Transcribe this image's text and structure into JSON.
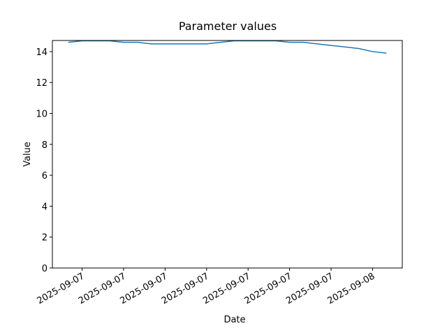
{
  "chart_data": {
    "type": "line",
    "title": "Parameter values",
    "xlabel": "Date",
    "ylabel": "Value",
    "x": [
      "2025-09-07T02:00",
      "2025-09-07T03:00",
      "2025-09-07T04:00",
      "2025-09-07T05:00",
      "2025-09-07T06:00",
      "2025-09-07T07:00",
      "2025-09-07T08:00",
      "2025-09-07T09:00",
      "2025-09-07T10:00",
      "2025-09-07T11:00",
      "2025-09-07T12:00",
      "2025-09-07T13:00",
      "2025-09-07T14:00",
      "2025-09-07T15:00",
      "2025-09-07T16:00",
      "2025-09-07T17:00",
      "2025-09-07T18:00",
      "2025-09-07T19:00",
      "2025-09-07T20:00",
      "2025-09-07T21:00",
      "2025-09-07T22:00",
      "2025-09-07T23:00",
      "2025-09-08T00:00",
      "2025-09-08T01:00"
    ],
    "series": [
      {
        "color": "#1f77b4",
        "values": [
          14.6,
          14.7,
          14.7,
          14.7,
          14.6,
          14.6,
          14.5,
          14.5,
          14.5,
          14.5,
          14.5,
          14.6,
          14.7,
          14.7,
          14.7,
          14.7,
          14.6,
          14.6,
          14.5,
          14.4,
          14.3,
          14.2,
          14.0,
          13.9
        ]
      }
    ],
    "xlim": [
      "2025-09-07T00:51",
      "2025-09-08T02:09"
    ],
    "xticks": [
      {
        "value": "2025-09-07T03:00",
        "label": "2025-09-07"
      },
      {
        "value": "2025-09-07T06:00",
        "label": "2025-09-07"
      },
      {
        "value": "2025-09-07T09:00",
        "label": "2025-09-07"
      },
      {
        "value": "2025-09-07T12:00",
        "label": "2025-09-07"
      },
      {
        "value": "2025-09-07T15:00",
        "label": "2025-09-07"
      },
      {
        "value": "2025-09-07T18:00",
        "label": "2025-09-07"
      },
      {
        "value": "2025-09-07T21:00",
        "label": "2025-09-07"
      },
      {
        "value": "2025-09-08T00:00",
        "label": "2025-09-08"
      }
    ],
    "ylim": [
      0,
      14.72
    ],
    "yticks": [
      0,
      2,
      4,
      6,
      8,
      10,
      12,
      14
    ],
    "grid": false
  }
}
